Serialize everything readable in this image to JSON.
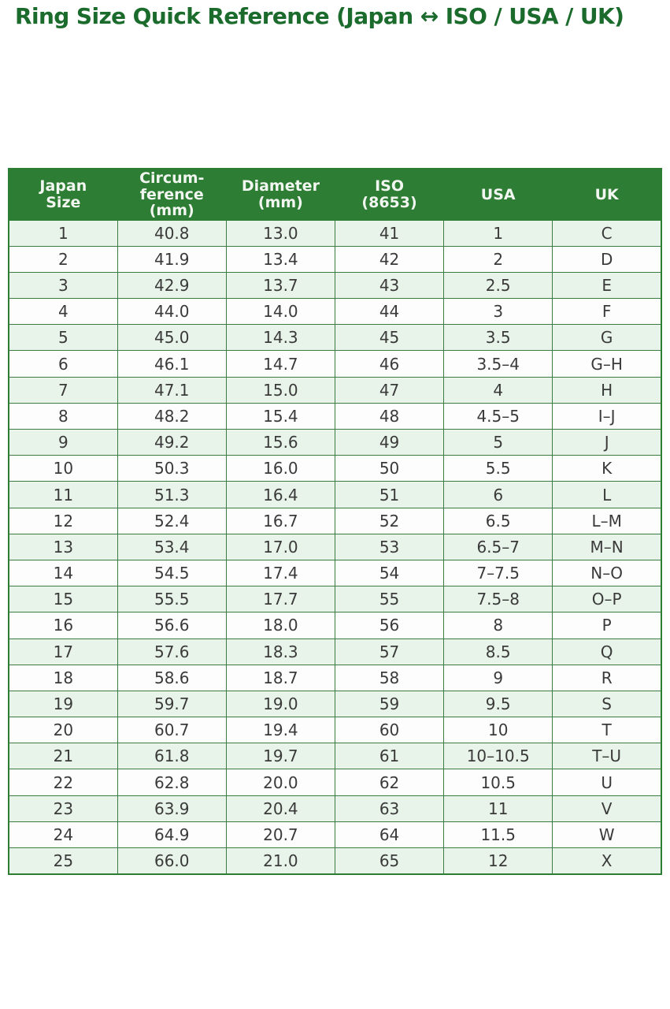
{
  "chart_data": {
    "type": "table",
    "title": "Ring Size Quick Reference (Japan ↔ ISO / USA / UK)",
    "columns": [
      "Japan\nSize",
      "Circum-\nference\n(mm)",
      "Diameter\n(mm)",
      "ISO\n(8653)",
      "USA",
      "UK"
    ],
    "column_ids": [
      "japan-size",
      "circumference-mm",
      "diameter-mm",
      "iso-8653",
      "usa",
      "uk"
    ],
    "rows": [
      [
        "1",
        "40.8",
        "13.0",
        "41",
        "1",
        "C"
      ],
      [
        "2",
        "41.9",
        "13.4",
        "42",
        "2",
        "D"
      ],
      [
        "3",
        "42.9",
        "13.7",
        "43",
        "2.5",
        "E"
      ],
      [
        "4",
        "44.0",
        "14.0",
        "44",
        "3",
        "F"
      ],
      [
        "5",
        "45.0",
        "14.3",
        "45",
        "3.5",
        "G"
      ],
      [
        "6",
        "46.1",
        "14.7",
        "46",
        "3.5–4",
        "G–H"
      ],
      [
        "7",
        "47.1",
        "15.0",
        "47",
        "4",
        "H"
      ],
      [
        "8",
        "48.2",
        "15.4",
        "48",
        "4.5–5",
        "I–J"
      ],
      [
        "9",
        "49.2",
        "15.6",
        "49",
        "5",
        "J"
      ],
      [
        "10",
        "50.3",
        "16.0",
        "50",
        "5.5",
        "K"
      ],
      [
        "11",
        "51.3",
        "16.4",
        "51",
        "6",
        "L"
      ],
      [
        "12",
        "52.4",
        "16.7",
        "52",
        "6.5",
        "L–M"
      ],
      [
        "13",
        "53.4",
        "17.0",
        "53",
        "6.5–7",
        "M–N"
      ],
      [
        "14",
        "54.5",
        "17.4",
        "54",
        "7–7.5",
        "N–O"
      ],
      [
        "15",
        "55.5",
        "17.7",
        "55",
        "7.5–8",
        "O–P"
      ],
      [
        "16",
        "56.6",
        "18.0",
        "56",
        "8",
        "P"
      ],
      [
        "17",
        "57.6",
        "18.3",
        "57",
        "8.5",
        "Q"
      ],
      [
        "18",
        "58.6",
        "18.7",
        "58",
        "9",
        "R"
      ],
      [
        "19",
        "59.7",
        "19.0",
        "59",
        "9.5",
        "S"
      ],
      [
        "20",
        "60.7",
        "19.4",
        "60",
        "10",
        "T"
      ],
      [
        "21",
        "61.8",
        "19.7",
        "61",
        "10–10.5",
        "T–U"
      ],
      [
        "22",
        "62.8",
        "20.0",
        "62",
        "10.5",
        "U"
      ],
      [
        "23",
        "63.9",
        "20.4",
        "63",
        "11",
        "V"
      ],
      [
        "24",
        "64.9",
        "20.7",
        "64",
        "11.5",
        "W"
      ],
      [
        "25",
        "66.0",
        "21.0",
        "65",
        "12",
        "X"
      ]
    ]
  },
  "colors": {
    "title_text": "#1b6b2d",
    "header_bg": "#2e7d34",
    "header_text": "#f2f6f1",
    "row_alt_bg": "#e8f4e9",
    "row_bg": "#fdfdfd",
    "border": "#3c7c43",
    "cell_text": "#3a3a3a"
  }
}
